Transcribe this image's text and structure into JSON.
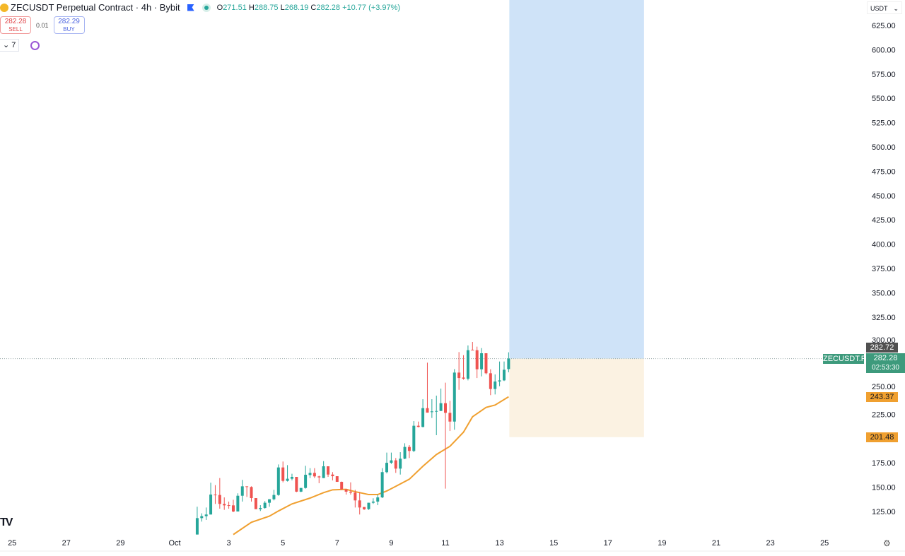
{
  "header": {
    "symbol_title": "ZECUSDT Perpetual Contract · 4h · Bybit",
    "ohlc": {
      "o_label": "O",
      "o": "271.51",
      "h_label": "H",
      "h": "288.75",
      "l_label": "L",
      "l": "268.19",
      "c_label": "C",
      "c": "282.28",
      "change": "+10.77 (+3.97%)"
    },
    "sell": {
      "price": "282.28",
      "label": "SELL"
    },
    "spread": "0.01",
    "buy": {
      "price": "282.29",
      "label": "BUY"
    },
    "indicator_count": "7",
    "currency": "USDT"
  },
  "colors": {
    "up": "#26a69a",
    "down": "#ef5350",
    "ma": "#f0a030",
    "target_zone": "#cfe3f8",
    "stop_zone": "#fbf2e2",
    "price_badge": "#3d9a7c",
    "ma_badge": "#f0a030",
    "stop_badge": "#f0a030",
    "crosshair_badge": "#505050"
  },
  "price_axis": {
    "ticks": [
      "625.00",
      "600.00",
      "575.00",
      "550.00",
      "525.00",
      "500.00",
      "475.00",
      "450.00",
      "425.00",
      "400.00",
      "375.00",
      "350.00",
      "325.00",
      "300.00",
      "250.00",
      "225.00",
      "175.00",
      "150.00",
      "125.00"
    ],
    "tick_values": [
      625,
      600,
      575,
      550,
      525,
      500,
      475,
      450,
      425,
      400,
      375,
      350,
      325,
      300,
      250,
      225,
      175,
      150,
      125
    ]
  },
  "time_axis": {
    "labels": [
      "25",
      "27",
      "29",
      "Oct",
      "3",
      "5",
      "7",
      "9",
      "11",
      "13",
      "15",
      "17",
      "19",
      "21",
      "23",
      "25"
    ],
    "dates": [
      "09-25",
      "09-27",
      "09-29",
      "10-01",
      "10-03",
      "10-05",
      "10-07",
      "10-09",
      "10-11",
      "10-13",
      "10-15",
      "10-17",
      "10-19",
      "10-21",
      "10-23",
      "10-25"
    ]
  },
  "badges": {
    "symbol_tag": "ZECUSDT.P",
    "last_price": "282.28",
    "countdown": "02:53:30",
    "crosshair_price": "282.72",
    "ma_value": "243.37",
    "stop_price": "201.48"
  },
  "position": {
    "type": "long",
    "entry": 282.28,
    "stop": 201.48,
    "start": "10-13 08:00",
    "end": "10-18 08:00"
  },
  "chart_data": {
    "type": "candlestick",
    "interval": "4h",
    "ylim": [
      100,
      651
    ],
    "candles": [
      [
        "10-01 20:00",
        101.3,
        129.9,
        101.3,
        118.2
      ],
      [
        "10-02 00:00",
        118.2,
        123.1,
        114.6,
        120.2
      ],
      [
        "10-02 04:00",
        120.2,
        129.1,
        116.3,
        121.9
      ],
      [
        "10-02 08:00",
        121.9,
        154.6,
        121.9,
        142.4
      ],
      [
        "10-02 12:00",
        142.4,
        152.1,
        132.8,
        141.7
      ],
      [
        "10-02 16:00",
        142.0,
        159.4,
        127.9,
        132.8
      ],
      [
        "10-02 20:00",
        132.8,
        139.5,
        126.7,
        131.3
      ],
      [
        "10-03 00:00",
        131.5,
        135.2,
        127.9,
        131.1
      ],
      [
        "10-03 04:00",
        131.3,
        137.1,
        124.3,
        125.0
      ],
      [
        "10-03 08:00",
        125.0,
        143.7,
        125.0,
        141.2
      ],
      [
        "10-03 12:00",
        141.2,
        157.5,
        135.2,
        150.9
      ],
      [
        "10-03 16:00",
        150.9,
        150.9,
        140.0,
        150.2
      ],
      [
        "10-03 20:00",
        150.2,
        150.9,
        135.2,
        138.8
      ],
      [
        "10-04 00:00",
        138.8,
        138.8,
        127.4,
        127.4
      ],
      [
        "10-04 04:00",
        127.4,
        131.5,
        125.5,
        128.6
      ],
      [
        "10-04 08:00",
        128.6,
        135.7,
        127.9,
        134.0
      ],
      [
        "10-04 12:00",
        134.0,
        137.6,
        129.9,
        137.6
      ],
      [
        "10-04 16:00",
        137.6,
        147.3,
        136.4,
        142.0
      ],
      [
        "10-04 20:00",
        142.0,
        173.4,
        141.2,
        170.3
      ],
      [
        "10-05 00:00",
        170.3,
        176.4,
        155.0,
        156.5
      ],
      [
        "10-05 04:00",
        156.5,
        172.7,
        155.8,
        158.7
      ],
      [
        "10-05 08:00",
        158.7,
        163.8,
        157.0,
        160.6
      ],
      [
        "10-05 12:00",
        160.6,
        160.6,
        144.9,
        145.4
      ],
      [
        "10-05 16:00",
        145.4,
        149.2,
        144.9,
        149.2
      ],
      [
        "10-05 20:00",
        149.2,
        172.0,
        148.5,
        162.8
      ],
      [
        "10-06 00:00",
        162.5,
        169.6,
        159.4,
        164.7
      ],
      [
        "10-06 04:00",
        164.7,
        169.6,
        159.4,
        161.1
      ],
      [
        "10-06 08:00",
        161.1,
        161.8,
        154.1,
        160.1
      ],
      [
        "10-06 12:00",
        159.4,
        176.8,
        159.4,
        171.5
      ],
      [
        "10-06 16:00",
        171.5,
        171.5,
        160.6,
        163.0
      ],
      [
        "10-06 20:00",
        163.0,
        165.5,
        157.0,
        161.3
      ],
      [
        "10-07 00:00",
        161.3,
        161.3,
        155.5,
        155.5
      ],
      [
        "10-07 04:00",
        155.5,
        155.8,
        147.3,
        147.8
      ],
      [
        "10-07 08:00",
        147.8,
        147.8,
        142.4,
        145.4
      ],
      [
        "10-07 12:00",
        145.4,
        155.0,
        142.4,
        144.4
      ],
      [
        "10-07 16:00",
        144.4,
        147.3,
        129.1,
        136.4
      ],
      [
        "10-07 20:00",
        136.4,
        144.9,
        121.9,
        129.1
      ],
      [
        "10-08 00:00",
        129.6,
        129.6,
        126.7,
        127.2
      ],
      [
        "10-08 04:00",
        127.4,
        134.0,
        126.7,
        134.0
      ],
      [
        "10-08 08:00",
        134.0,
        138.6,
        132.8,
        135.2
      ],
      [
        "10-08 12:00",
        135.2,
        142.4,
        131.5,
        139.5
      ],
      [
        "10-08 16:00",
        139.5,
        169.6,
        138.8,
        165.5
      ],
      [
        "10-08 20:00",
        165.5,
        185.6,
        164.2,
        175.1
      ],
      [
        "10-09 00:00",
        175.1,
        185.6,
        173.9,
        177.6
      ],
      [
        "10-09 04:00",
        177.6,
        180.0,
        164.7,
        169.1
      ],
      [
        "10-09 08:00",
        169.1,
        186.0,
        163.0,
        179.3
      ],
      [
        "10-09 12:00",
        179.3,
        195.2,
        178.8,
        191.4
      ],
      [
        "10-09 16:00",
        191.4,
        193.3,
        180.0,
        187.3
      ],
      [
        "10-09 20:00",
        187.3,
        218.0,
        186.0,
        213.2
      ],
      [
        "10-10 00:00",
        213.2,
        217.5,
        211.5,
        212.0
      ],
      [
        "10-10 04:00",
        212.0,
        240.5,
        211.5,
        231.3
      ],
      [
        "10-10 08:00",
        231.3,
        278.1,
        226.7,
        226.7
      ],
      [
        "10-10 12:00",
        227.2,
        240.5,
        221.2,
        228.0
      ],
      [
        "10-10 16:00",
        227.7,
        244.2,
        203.5,
        228.4
      ],
      [
        "10-10 20:00",
        228.4,
        251.4,
        228.4,
        236.4
      ],
      [
        "10-11 00:00",
        236.4,
        257.5,
        148.5,
        226.5
      ],
      [
        "10-11 04:00",
        226.5,
        238.8,
        207.8,
        217.5
      ],
      [
        "10-11 08:00",
        217.5,
        271.5,
        209.1,
        267.9
      ],
      [
        "10-11 12:00",
        267.9,
        289.0,
        250.2,
        262.3
      ],
      [
        "10-11 16:00",
        262.8,
        285.8,
        260.6,
        261.6
      ],
      [
        "10-11 20:00",
        261.6,
        295.8,
        259.9,
        290.9
      ],
      [
        "10-12 00:00",
        291.4,
        299.4,
        290.9,
        290.9
      ],
      [
        "10-12 04:00",
        290.9,
        294.6,
        262.3,
        271.3
      ],
      [
        "10-12 08:00",
        271.3,
        293.1,
        264.0,
        287.8
      ],
      [
        "10-12 12:00",
        287.8,
        287.8,
        266.0,
        267.2
      ],
      [
        "10-12 16:00",
        267.2,
        271.3,
        244.7,
        251.0
      ],
      [
        "10-12 20:00",
        251.0,
        266.0,
        245.4,
        258.7
      ],
      [
        "10-13 00:00",
        258.7,
        279.3,
        253.9,
        259.9
      ],
      [
        "10-13 04:00",
        259.9,
        279.3,
        259.2,
        270.8
      ],
      [
        "10-13 08:00",
        271.51,
        288.75,
        268.19,
        282.28
      ]
    ],
    "moving_average": [
      [
        "10-03 04:00",
        101.3
      ],
      [
        "10-03 20:00",
        113.9
      ],
      [
        "10-04 12:00",
        120.2
      ],
      [
        "10-04 20:00",
        125.5
      ],
      [
        "10-05 08:00",
        132.8
      ],
      [
        "10-06 00:00",
        138.8
      ],
      [
        "10-06 12:00",
        144.4
      ],
      [
        "10-06 20:00",
        147.3
      ],
      [
        "10-07 08:00",
        147.8
      ],
      [
        "10-07 16:00",
        145.4
      ],
      [
        "10-08 04:00",
        142.4
      ],
      [
        "10-08 12:00",
        142.4
      ],
      [
        "10-08 20:00",
        146.1
      ],
      [
        "10-09 04:00",
        150.9
      ],
      [
        "10-09 16:00",
        158.2
      ],
      [
        "10-10 04:00",
        171.5
      ],
      [
        "10-10 16:00",
        183.6
      ],
      [
        "10-11 04:00",
        192.1
      ],
      [
        "10-11 16:00",
        206.6
      ],
      [
        "10-12 00:00",
        222.4
      ],
      [
        "10-12 12:00",
        232.1
      ],
      [
        "10-12 20:00",
        234.5
      ],
      [
        "10-13 08:00",
        243.0
      ]
    ],
    "last_price": 282.28,
    "grid": false
  }
}
